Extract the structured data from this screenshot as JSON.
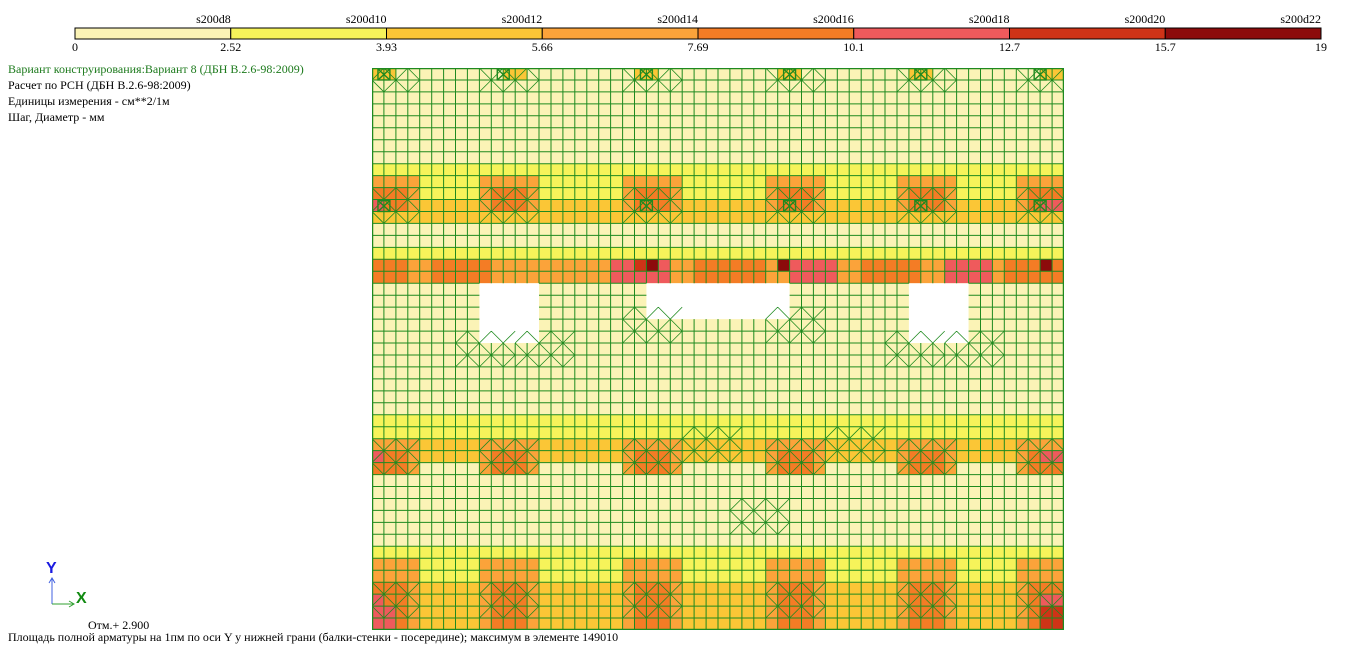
{
  "legend": {
    "bar_labels": [
      "s200d8",
      "s200d10",
      "s200d12",
      "s200d14",
      "s200d16",
      "s200d18",
      "s200d20",
      "s200d22"
    ],
    "breakpoints": [
      "0",
      "2.52",
      "3.93",
      "5.66",
      "7.69",
      "10.1",
      "12.7",
      "15.7",
      "19"
    ],
    "colors": [
      "#fbf3b6",
      "#f6f35a",
      "#fbc636",
      "#fba33a",
      "#f47c25",
      "#ef5a5c",
      "#cf3317",
      "#8c0b0b"
    ]
  },
  "info": {
    "variant": "Вариант конструирования:Вариант 8 (ДБН В.2.6-98:2009)",
    "calc": "Расчет по РСН (ДБН В.2.6-98:2009)",
    "units": "Единицы измерения - см**2/1м",
    "step": "Шаг, Диаметр - мм"
  },
  "axes": {
    "y": "Y",
    "x": "X"
  },
  "elevation": "Отм.+ 2.900",
  "caption": "Площадь полной арматуры на 1пм по оси Y у нижней грани (балки-стенки - посередине); максимум в элементе 149010",
  "plan": {
    "mesh_color": "#1f8a1f",
    "background": "#fbf3b6",
    "opening_color": "#ffffff"
  }
}
